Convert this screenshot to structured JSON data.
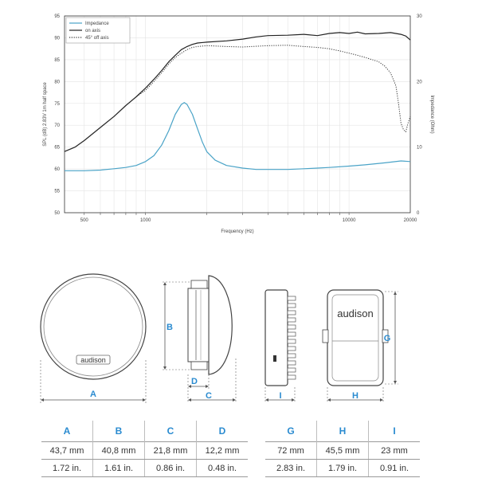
{
  "chart_data": {
    "type": "line",
    "xlabel": "Frequency  (Hz)",
    "ylabel": "SPL  (dB)   2.83V   1m  half space",
    "y2label": "Impedance (Ohm)",
    "xscale": "log",
    "xlim": [
      400,
      20000
    ],
    "ylim": [
      50,
      95
    ],
    "y2lim": [
      0,
      30
    ],
    "xticks": [
      500,
      1000,
      10000,
      20000
    ],
    "xtick_labels": [
      "500",
      "1000",
      "10000",
      "20000"
    ],
    "yticks": [
      50,
      55,
      60,
      65,
      70,
      75,
      80,
      85,
      90,
      95
    ],
    "y2ticks": [
      0,
      10,
      20,
      30
    ],
    "grid": true,
    "legend": "top-left",
    "series": [
      {
        "name": "Impedance",
        "axis": "right",
        "color": "#4aa3c7",
        "style": "solid",
        "x": [
          400,
          500,
          600,
          700,
          800,
          900,
          1000,
          1100,
          1200,
          1300,
          1400,
          1500,
          1550,
          1600,
          1700,
          1800,
          1900,
          2000,
          2200,
          2500,
          3000,
          3500,
          4000,
          5000,
          6000,
          7000,
          8000,
          10000,
          12000,
          15000,
          18000,
          20000
        ],
        "y": [
          6.4,
          6.4,
          6.5,
          6.7,
          6.9,
          7.2,
          7.8,
          8.7,
          10.3,
          12.5,
          15.0,
          16.5,
          16.8,
          16.5,
          15.0,
          12.8,
          10.8,
          9.3,
          8.0,
          7.2,
          6.8,
          6.6,
          6.6,
          6.6,
          6.7,
          6.8,
          6.9,
          7.1,
          7.3,
          7.6,
          7.9,
          7.8
        ]
      },
      {
        "name": "on axis",
        "axis": "left",
        "color": "#222222",
        "style": "solid",
        "x": [
          400,
          450,
          500,
          600,
          700,
          800,
          900,
          1000,
          1100,
          1200,
          1300,
          1400,
          1500,
          1600,
          1700,
          1800,
          2000,
          2500,
          3000,
          3500,
          4000,
          5000,
          6000,
          7000,
          8000,
          9000,
          10000,
          11000,
          12000,
          14000,
          16000,
          18000,
          19000,
          20000
        ],
        "y": [
          64.0,
          65.0,
          66.5,
          69.5,
          72.0,
          74.5,
          76.5,
          78.5,
          80.5,
          82.5,
          84.5,
          86.0,
          87.3,
          88.0,
          88.5,
          88.8,
          89.0,
          89.3,
          89.7,
          90.2,
          90.5,
          90.6,
          90.8,
          90.5,
          91.0,
          91.2,
          91.0,
          91.3,
          90.9,
          91.0,
          91.2,
          90.8,
          90.4,
          89.5
        ]
      },
      {
        "name": "45° off axis",
        "axis": "left",
        "color": "#333333",
        "style": "dotted",
        "x": [
          400,
          450,
          500,
          600,
          700,
          800,
          900,
          1000,
          1100,
          1200,
          1300,
          1400,
          1500,
          1600,
          1700,
          1800,
          2000,
          2500,
          3000,
          4000,
          5000,
          6000,
          7000,
          8000,
          9000,
          10000,
          11000,
          12000,
          13000,
          14000,
          15000,
          16000,
          17000,
          17500,
          18000,
          18500,
          19000,
          19500,
          20000
        ],
        "y": [
          64.0,
          65.0,
          66.5,
          69.5,
          72.0,
          74.5,
          76.5,
          78.0,
          80.0,
          82.0,
          84.0,
          85.5,
          86.5,
          87.3,
          87.8,
          88.0,
          88.2,
          88.0,
          87.9,
          88.2,
          88.3,
          88.0,
          87.8,
          87.5,
          87.0,
          86.5,
          86.0,
          85.5,
          85.0,
          84.5,
          83.5,
          82.0,
          79.0,
          75.0,
          70.5,
          69.0,
          68.5,
          70.5,
          72.0
        ]
      }
    ]
  },
  "drawings": {
    "brand": "audison",
    "labels": {
      "a": "A",
      "b": "B",
      "c": "C",
      "d": "D",
      "g": "G",
      "h": "H",
      "i": "I"
    }
  },
  "table_left": {
    "headers": [
      "A",
      "B",
      "C",
      "D"
    ],
    "mm": [
      "43,7 mm",
      "40,8 mm",
      "21,8 mm",
      "12,2 mm"
    ],
    "inch": [
      "1.72 in.",
      "1.61 in.",
      "0.86 in.",
      "0.48 in."
    ]
  },
  "table_right": {
    "headers": [
      "G",
      "H",
      "I"
    ],
    "mm": [
      "72 mm",
      "45,5 mm",
      "23 mm"
    ],
    "inch": [
      "2.83 in.",
      "1.79 in.",
      "0.91 in."
    ]
  },
  "colors": {
    "accent": "#2a8bd0",
    "impedance": "#4aa3c7",
    "line": "#222222",
    "outline": "#555555"
  }
}
